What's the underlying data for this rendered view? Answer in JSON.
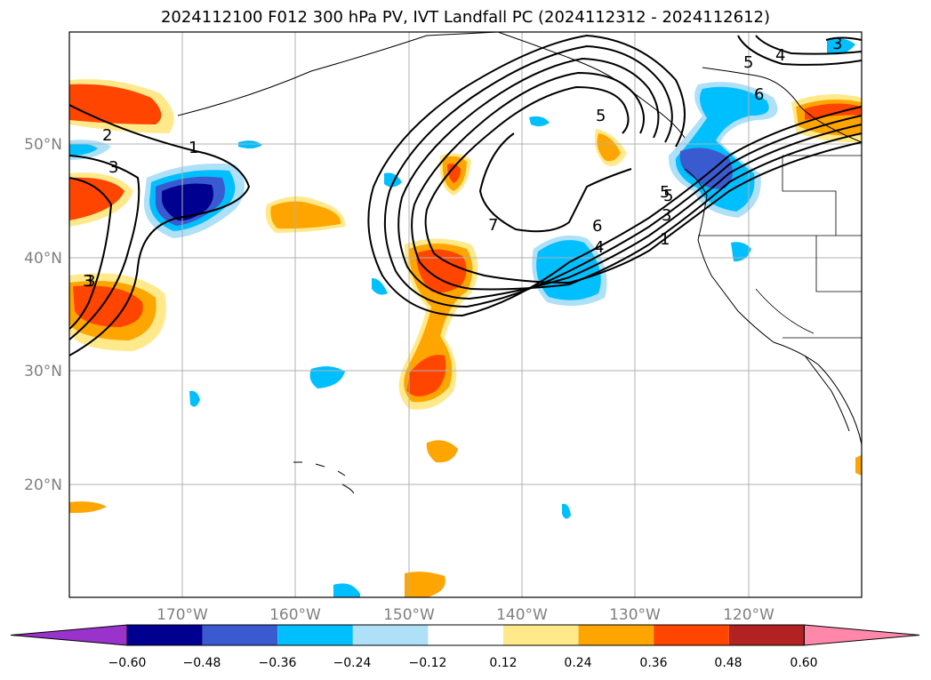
{
  "title": "2024112100 F012 300 hPa PV, IVT Landfall PC (2024112312 - 2024112612)",
  "lon_labels": [
    "170°W",
    "160°W",
    "150°W",
    "140°W",
    "130°W",
    "120°W"
  ],
  "lat_labels": [
    "50°N",
    "40°N",
    "30°N",
    "20°N"
  ],
  "contour_labels": [
    "1",
    "3",
    "2",
    "3",
    "5",
    "6",
    "4",
    "5",
    "3",
    "5",
    "7",
    "6",
    "4",
    "5",
    "3",
    "1",
    "3"
  ],
  "colorbar": {
    "ticks": [
      "−0.60",
      "−0.48",
      "−0.36",
      "−0.24",
      "−0.12",
      "0.12",
      "0.24",
      "0.36",
      "0.48",
      "0.60"
    ],
    "colors": [
      "#9933cc",
      "#000090",
      "#3a5bd0",
      "#00bfff",
      "#aee0f8",
      "#ffffff",
      "#ffe98a",
      "#ffa500",
      "#ff4500",
      "#b22222",
      "#ff88aa"
    ]
  }
}
